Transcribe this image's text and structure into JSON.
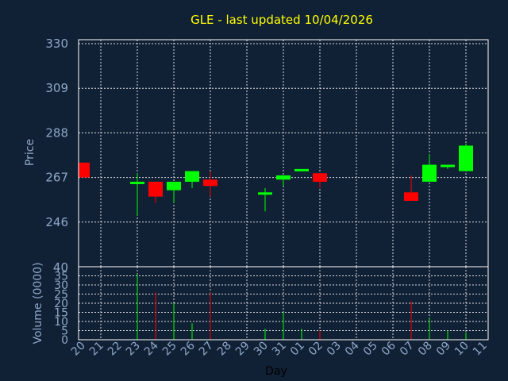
{
  "chart_data": [
    {
      "type": "candlestick",
      "title": "GLE - last updated 10/04/2026",
      "ylabel": "Price",
      "ylim": [
        225,
        330
      ],
      "yticks": [
        "330",
        "309",
        "288",
        "267",
        "246"
      ],
      "grid": true,
      "colors": {
        "up": "#00ff00",
        "down": "#ff0000",
        "background": "#102035",
        "title": "#ffff00",
        "axis_text": "#8fa8c8",
        "grid": "#ffffff"
      },
      "candles": [
        {
          "day": "20",
          "open": 274,
          "close": 267,
          "high": 274,
          "low": 267
        },
        {
          "day": "23",
          "open": 265,
          "close": 265,
          "high": 269,
          "low": 249
        },
        {
          "day": "24",
          "open": 265,
          "close": 258,
          "high": 265,
          "low": 255
        },
        {
          "day": "25",
          "open": 261,
          "close": 265,
          "high": 265,
          "low": 255
        },
        {
          "day": "26",
          "open": 265,
          "close": 270,
          "high": 270,
          "low": 262
        },
        {
          "day": "27",
          "open": 266,
          "close": 263,
          "high": 270,
          "low": 258
        },
        {
          "day": "30",
          "open": 259,
          "close": 260,
          "high": 262,
          "low": 251
        },
        {
          "day": "31",
          "open": 266,
          "close": 268,
          "high": 268,
          "low": 263
        },
        {
          "day": "01",
          "open": 270,
          "close": 271,
          "high": 271,
          "low": 270
        },
        {
          "day": "02",
          "open": 269,
          "close": 265,
          "high": 269,
          "low": 262
        },
        {
          "day": "07",
          "open": 260,
          "close": 256,
          "high": 268,
          "low": 256
        },
        {
          "day": "08",
          "open": 265,
          "close": 273,
          "high": 278,
          "low": 265
        },
        {
          "day": "09",
          "open": 272,
          "close": 273,
          "high": 273,
          "low": 271
        },
        {
          "day": "10",
          "open": 270,
          "close": 282,
          "high": 283,
          "low": 270
        }
      ]
    },
    {
      "type": "bar",
      "ylabel": "Volume (0000)",
      "xlabel": "Day",
      "ylim": [
        0,
        40
      ],
      "yticks": [
        "40",
        "35",
        "30",
        "25",
        "20",
        "15",
        "10",
        "5",
        "0"
      ],
      "categories": [
        "20",
        "21",
        "22",
        "23",
        "24",
        "25",
        "26",
        "27",
        "28",
        "29",
        "30",
        "31",
        "01",
        "02",
        "03",
        "04",
        "05",
        "06",
        "07",
        "08",
        "09",
        "10",
        "11"
      ],
      "values": [
        0,
        0,
        0,
        36,
        26,
        20,
        9,
        26,
        0,
        0,
        6,
        15,
        6,
        5,
        0,
        0,
        0,
        0,
        21,
        12,
        5,
        4,
        0
      ],
      "direction": [
        "",
        "",
        "",
        "up",
        "down",
        "up",
        "up",
        "down",
        "",
        "",
        "up",
        "up",
        "up",
        "down",
        "",
        "",
        "",
        "",
        "down",
        "up",
        "up",
        "up",
        ""
      ]
    }
  ]
}
